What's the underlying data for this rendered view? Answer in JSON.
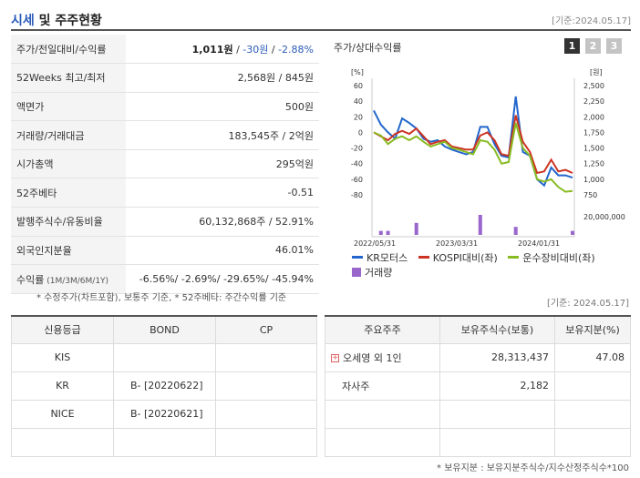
{
  "header": {
    "title_blue": "시세",
    "title_rest": " 및 주주현황",
    "date": "[기준:2024.05.17]"
  },
  "price_rows": [
    {
      "label": "주가/전일대비/수익률",
      "v1": "1,011원",
      "sep1": " / ",
      "v2": "-30원",
      "sep2": " / ",
      "v3": "-2.88%"
    },
    {
      "label": "52Weeks 최고/최저",
      "value": "2,568원 / 845원"
    },
    {
      "label": "액면가",
      "value": "500원"
    },
    {
      "label": "거래량/거래대금",
      "value": "183,545주 / 2억원"
    },
    {
      "label": "시가총액",
      "value": "295억원"
    },
    {
      "label": "52주베타",
      "value": "-0.51"
    },
    {
      "label": "발행주식수/유동비율",
      "value": "60,132,868주 / 52.91%"
    },
    {
      "label": "외국인지분율",
      "value": "46.01%"
    },
    {
      "label": "수익률",
      "label_small": " (1M/3M/6M/1Y)",
      "value": "-6.56%/ -2.69%/ -29.65%/ -45.94%"
    }
  ],
  "chart_panel": {
    "title": "주가/상대수익률",
    "tabs": [
      "1",
      "2",
      "3"
    ],
    "left_unit": "[%]",
    "right_unit": "[원]",
    "volume_tick": "20,000,000"
  },
  "chart_data": {
    "type": "line",
    "x_labels": [
      "2022/05/31",
      "2023/03/31",
      "2024/01/31"
    ],
    "left_axis": {
      "ticks": [
        60,
        40,
        20,
        0,
        -20,
        -40,
        -60,
        -80
      ],
      "ylim": [
        -80,
        60
      ]
    },
    "right_axis": {
      "ticks": [
        "2,500",
        "2,250",
        "2,000",
        "1,750",
        "1,500",
        "1,250",
        "1,000",
        "750"
      ],
      "ylim": [
        750,
        2500
      ]
    },
    "series": [
      {
        "name": "KR모터스",
        "color": "#2266cc",
        "values": [
          28,
          10,
          0,
          -8,
          18,
          12,
          5,
          -8,
          -12,
          -10,
          -18,
          -22,
          -25,
          -28,
          -25,
          7,
          7,
          -15,
          -30,
          -32,
          46,
          -25,
          -30,
          -60,
          -68,
          -45,
          -55,
          -55,
          -58
        ]
      },
      {
        "name": "KOSPI대비(좌)",
        "color": "#cc3322",
        "values": [
          0,
          -5,
          -10,
          -2,
          2,
          -2,
          5,
          -5,
          -15,
          -12,
          -10,
          -18,
          -20,
          -22,
          -22,
          -4,
          0,
          -10,
          -28,
          -30,
          22,
          -12,
          -25,
          -52,
          -50,
          -35,
          -50,
          -48,
          -52
        ]
      },
      {
        "name": "운수장비대비(좌)",
        "color": "#88bb22",
        "values": [
          0,
          -4,
          -15,
          -8,
          -5,
          -10,
          -5,
          -12,
          -18,
          -15,
          -12,
          -20,
          -22,
          -25,
          -28,
          -10,
          -12,
          -22,
          -40,
          -38,
          12,
          -20,
          -30,
          -60,
          -63,
          -60,
          -70,
          -76,
          -75
        ]
      },
      {
        "name": "거래량",
        "color": "#9966cc",
        "values": [
          0,
          1,
          1,
          0,
          0,
          0,
          3,
          0,
          0,
          0,
          0,
          0,
          0,
          0,
          0,
          5,
          0,
          0,
          0,
          0,
          2,
          0,
          0,
          0,
          0,
          0,
          0,
          0,
          1
        ]
      }
    ]
  },
  "notes": {
    "note1": "* 수정주가(차트포함), 보통주 기준, * 52주베타: 주간수익률 기준",
    "date": "[기준: 2024.05.17]",
    "note2": "* 보유지분 : 보유지분주식수/지수산정주식수*100"
  },
  "credit": {
    "headers": [
      "신용등급",
      "BOND",
      "CP"
    ],
    "rows": [
      [
        "KIS",
        "",
        ""
      ],
      [
        "KR",
        "B-  [20220622]",
        ""
      ],
      [
        "NICE",
        "B-  [20220621]",
        ""
      ],
      [
        "",
        "",
        ""
      ]
    ]
  },
  "holders": {
    "headers": [
      "주요주주",
      "보유주식수(보통)",
      "보유지분(%)"
    ],
    "rows": [
      {
        "name": "오세영 외 1인",
        "shares": "28,313,437",
        "pct": "47.08",
        "icon": "plus-icon"
      },
      {
        "name": "자사주",
        "shares": "2,182",
        "pct": ""
      },
      {
        "name": "",
        "shares": "",
        "pct": ""
      },
      {
        "name": "",
        "shares": "",
        "pct": ""
      }
    ]
  }
}
